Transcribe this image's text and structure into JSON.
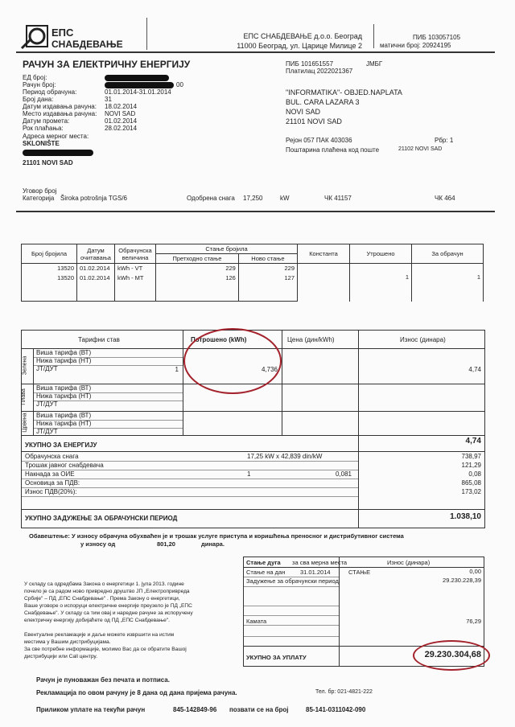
{
  "header": {
    "logo_text_1": "ЕПС",
    "logo_text_2": "СНАБДЕВАЊЕ",
    "company": "ЕПС СНАБДЕВАЊЕ д.о.о. Београд",
    "address": "11000 Београд, ул. Царице Милице 2",
    "pib": "ПИБ 103057105",
    "mb": "матични број: 20924195"
  },
  "title": "РАЧУН ЗА ЕЛЕКТРИЧНУ ЕНЕРГИЈУ",
  "info": [
    {
      "label": "ЕД број:",
      "value": ""
    },
    {
      "label": "Рачун број:",
      "value": "00"
    },
    {
      "label": "Период обрачуна:",
      "value": "01.01.2014-31.01.2014"
    },
    {
      "label": "Број дана:",
      "value": "31"
    },
    {
      "label": "Датум издавања рачуна:",
      "value": "18.02.2014"
    },
    {
      "label": "Место издавања рачуна:",
      "value": "NOVI SAD"
    },
    {
      "label": "Датум промета:",
      "value": "01.02.2014"
    },
    {
      "label": "Рок плаћања:",
      "value": "28.02.2014"
    }
  ],
  "place": {
    "label": "Адреса мерног места:",
    "name": "SKLONIŠTE",
    "city": "21101 NOVI SAD"
  },
  "payer": {
    "pib": "ПИБ  101651557",
    "jmbg": "ЈМБГ",
    "platilac": "Платилац  2022021367",
    "line1": "\"INFORMATIKA\"- OBJED.NAPLATA",
    "line2": "BUL. CARA LAZARA  3",
    "line3": "NOVI SAD",
    "line4": "21101 NOVI SAD",
    "region": "Рејон    057    ПАК  403036",
    "rbr": "Рбр: 1",
    "postage": "Поштарина плаћена код поште",
    "post_office": "21102 NOVI SAD"
  },
  "contract": {
    "ugovor": "Уговор број",
    "kategorija_label": "Категорија",
    "kategorija": "Široka potrošnja TGS/6",
    "snaga_label": "Одобрена снага",
    "snaga": "17,250",
    "unit": "kW",
    "ck1": "ЧК  41157",
    "ck2": "ЧК  464"
  },
  "meter_table": {
    "headers": [
      "Број бројила",
      "Датум очитавања",
      "Обрачунска величина",
      "Стање бројила",
      "Претходно стање",
      "Ново стање",
      "Константа",
      "Утрошено",
      "За обрачун"
    ],
    "rows": [
      [
        "13520",
        "01.02.2014",
        "kWh - VT",
        "229",
        "229"
      ],
      [
        "13520",
        "01.02.2014",
        "kWh - MT",
        "126",
        "127"
      ]
    ],
    "utroseno": "1",
    "za_obracun": "1"
  },
  "tariff_table": {
    "headers": [
      "Тарифни став",
      "Потрошено (kWh)",
      "Цена (дин/kWh)",
      "Износ (динара)"
    ],
    "groups": [
      {
        "name": "Зелена",
        "items": [
          "Виша тарифа (ВТ)",
          "Нижа тарифа (НТ)",
          "ЈТ/ДУТ"
        ]
      },
      {
        "name": "Плава",
        "items": [
          "Виша тарифа (ВТ)",
          "Нижа тарифа (НТ)",
          "ЈТ/ДУТ"
        ]
      },
      {
        "name": "Црвена",
        "items": [
          "Виша тарифа (ВТ)",
          "Нижа тарифа (НТ)",
          "ЈТ/ДУТ"
        ]
      }
    ],
    "green_consumed": "1",
    "green_price": "4,736",
    "green_amount": "4,74",
    "total_energy_label": "УКУПНО ЗА ЕНЕРГИЈУ",
    "total_energy": "4,74",
    "charges": [
      {
        "label": "Обрачунска снага",
        "mid": "17,25 kW x     42,839 din/kW",
        "right": "",
        "amount": "738,97"
      },
      {
        "label": "Трошак јавног снабдевача",
        "mid": "",
        "right": "",
        "amount": "121,29"
      },
      {
        "label": "Накнада за ОИЕ",
        "mid": "1",
        "right": "0,081",
        "amount": "0,08"
      },
      {
        "label": "Основица за ПДВ:",
        "mid": "",
        "right": "",
        "amount": "865,08"
      },
      {
        "label": "Износ ПДВ(20%):",
        "mid": "",
        "right": "",
        "amount": "173,02"
      }
    ],
    "total_label": "УКУПНО ЗАДУЖЕЊЕ ЗА ОБРАЧУНСКИ ПЕРИОД",
    "total": "1.038,10"
  },
  "notice": {
    "line1": "Обавештење: У износу обрачуна обухваћен је и трошак услуге приступа и коришћења преносног и дистрибутивног система",
    "line2": "у износу од",
    "amount": "801,20",
    "unit": "динара."
  },
  "info_text": [
    "У складу са одредбама Закона о енергетици 1. јула 2013. године",
    "почело је са радом ново привредно друштво ЈП „Електропривреда",
    "Србије\" – ПД „ЕПС Снабдевање\" . Према Закону о енергетици,",
    "Ваше уговоре о испоруци електричне енергије преузело је ПД „ЕПС",
    "Снабдевање\". У складу са тим овај и наредне рачуне за испоручену",
    "електричну енергију добијаћете од ПД „ЕПС Снабдевање\".",
    "",
    "Евентуалне рекламације и даље можете извршити на истим",
    "местима у Вашим дистрибуцијама.",
    "За све потребне информације, молимо Вас да се обратите Вашој",
    "дистрибуцији или Call центру."
  ],
  "debt": {
    "h1": "Стање дуга",
    "h1b": "за сва мерна места",
    "h2": "Износ (динара)",
    "stanje_label": "Стање на дан",
    "stanje_date": "31.01.2014",
    "stanje_word": "СТАЊЕ",
    "stanje": "0,00",
    "zaduzenje_label": "Задужење за обрачунски период",
    "zaduzenje": "29.230.228,39",
    "kamata_label": "Камата",
    "kamata": "76,29",
    "total_label": "УКУПНО ЗА УПЛАТУ",
    "total": "29.230.304,68"
  },
  "footer": {
    "l1": "Рачун је пуноважан без печата и потписа.",
    "l2": "Рекламација по овом рачуну је 8 дана од дана пријема рачуна.",
    "tel": "Тел. бр: 021-4821-222",
    "l3a": "Приликом уплате на текући рачун",
    "acct": "845-142849-96",
    "l3b": "позвати се на број",
    "ref": "85-141-0311042-090"
  },
  "colors": {
    "annotation": "#a3222b"
  }
}
